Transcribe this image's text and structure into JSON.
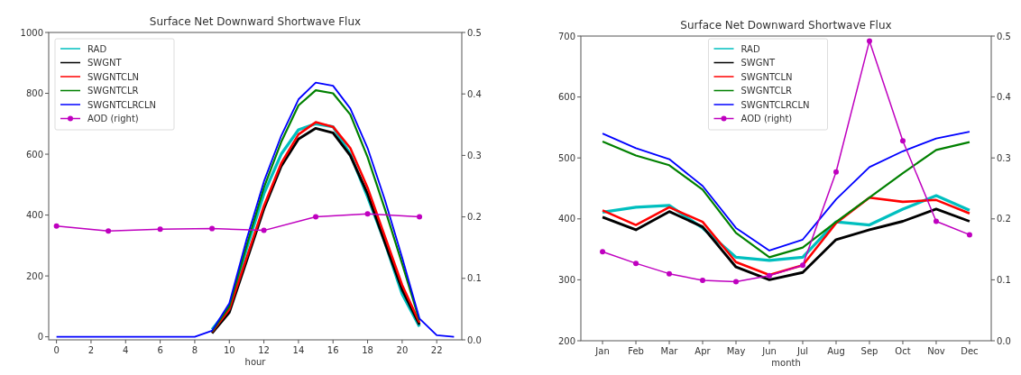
{
  "chart_data": [
    {
      "type": "line",
      "title": "Surface Net Downward Shortwave Flux",
      "xlabel": "hour",
      "xlim": [
        -0.45,
        23.45
      ],
      "xticks": [
        0,
        2,
        4,
        6,
        8,
        10,
        12,
        14,
        16,
        18,
        20,
        22
      ],
      "ylim": [
        -10,
        1000
      ],
      "yticks": [
        0,
        200,
        400,
        600,
        800,
        1000
      ],
      "y2lim": [
        0,
        0.5
      ],
      "y2ticks": [
        {
          "value": 0,
          "label": "0.0"
        },
        0.1,
        0.2,
        0.3,
        0.4,
        0.5
      ],
      "legend": "top left",
      "series": [
        {
          "name": "RAD",
          "color": "#00bfbf",
          "x": [
            9,
            10,
            11,
            12,
            13,
            14,
            15,
            16,
            17,
            18,
            19,
            20,
            21
          ],
          "values": [
            24,
            95,
            290,
            470,
            600,
            680,
            700,
            690,
            600,
            460,
            310,
            140,
            34
          ]
        },
        {
          "name": "SWGNT",
          "color": "#000000",
          "x": [
            9,
            10,
            11,
            12,
            13,
            14,
            15,
            16,
            17,
            18,
            19,
            20,
            21
          ],
          "values": [
            12,
            80,
            250,
            420,
            560,
            650,
            685,
            670,
            595,
            470,
            310,
            155,
            40
          ]
        },
        {
          "name": "SWGNTCLN",
          "color": "#ff0000",
          "x": [
            9,
            10,
            11,
            12,
            13,
            14,
            15,
            16,
            17,
            18,
            19,
            20,
            21
          ],
          "values": [
            16,
            90,
            260,
            430,
            570,
            665,
            705,
            690,
            620,
            490,
            330,
            170,
            47
          ]
        },
        {
          "name": "SWGNTCLR",
          "color": "#008000",
          "x": [
            9,
            10,
            11,
            12,
            13,
            14,
            15,
            16,
            17,
            18,
            19,
            20,
            21
          ],
          "values": [
            18,
            100,
            300,
            490,
            640,
            760,
            810,
            800,
            730,
            590,
            420,
            240,
            54
          ]
        },
        {
          "name": "SWGNTCLRCLN",
          "color": "#0000ff",
          "x": [
            0,
            1,
            2,
            3,
            4,
            5,
            6,
            7,
            8,
            9,
            10,
            11,
            12,
            13,
            14,
            15,
            16,
            17,
            18,
            19,
            20,
            21,
            22,
            23
          ],
          "values": [
            0,
            0,
            0,
            0,
            0,
            0,
            0,
            0,
            0,
            20,
            110,
            320,
            510,
            660,
            780,
            835,
            825,
            750,
            620,
            450,
            260,
            60,
            5,
            0
          ]
        },
        {
          "name": "AOD (right)",
          "color": "#bf00bf",
          "axis": "y2",
          "marker": "circle",
          "x": [
            0,
            3,
            6,
            9,
            12,
            15,
            18,
            21
          ],
          "values": [
            0.185,
            0.177,
            0.18,
            0.181,
            0.178,
            0.2,
            0.205,
            0.2
          ]
        }
      ]
    },
    {
      "type": "line",
      "title": "Surface Net Downward Shortwave Flux",
      "xlabel": "month",
      "categories": [
        "Jan",
        "Feb",
        "Mar",
        "Apr",
        "May",
        "Jun",
        "Jul",
        "Aug",
        "Sep",
        "Oct",
        "Nov",
        "Dec"
      ],
      "ylim": [
        200,
        700
      ],
      "yticks": [
        200,
        300,
        400,
        500,
        600,
        700
      ],
      "y2lim": [
        0,
        0.5
      ],
      "y2ticks": [
        {
          "value": 0,
          "label": "0.0"
        },
        0.1,
        0.2,
        0.3,
        0.4,
        0.5
      ],
      "legend": "top",
      "series": [
        {
          "name": "RAD",
          "color": "#00bfbf",
          "values": [
            411,
            419,
            422,
            385,
            337,
            332,
            337,
            395,
            390,
            416,
            438,
            414
          ]
        },
        {
          "name": "SWGNT",
          "color": "#000000",
          "values": [
            403,
            382,
            412,
            387,
            321,
            300,
            312,
            366,
            382,
            396,
            416,
            396
          ]
        },
        {
          "name": "SWGNTCLN",
          "color": "#ff0000",
          "values": [
            414,
            390,
            419,
            395,
            329,
            308,
            324,
            393,
            435,
            428,
            431,
            409
          ]
        },
        {
          "name": "SWGNTCLR",
          "color": "#008000",
          "values": [
            527,
            504,
            488,
            448,
            377,
            337,
            353,
            395,
            435,
            475,
            513,
            526
          ]
        },
        {
          "name": "SWGNTCLRCLN",
          "color": "#0000ff",
          "values": [
            540,
            516,
            498,
            454,
            385,
            348,
            366,
            432,
            485,
            511,
            532,
            543
          ]
        },
        {
          "name": "AOD (right)",
          "color": "#bf00bf",
          "axis": "y2",
          "marker": "circle",
          "values": [
            0.146,
            0.127,
            0.11,
            0.099,
            0.097,
            0.107,
            0.124,
            0.277,
            0.492,
            0.328,
            0.196,
            0.174
          ]
        }
      ]
    }
  ]
}
